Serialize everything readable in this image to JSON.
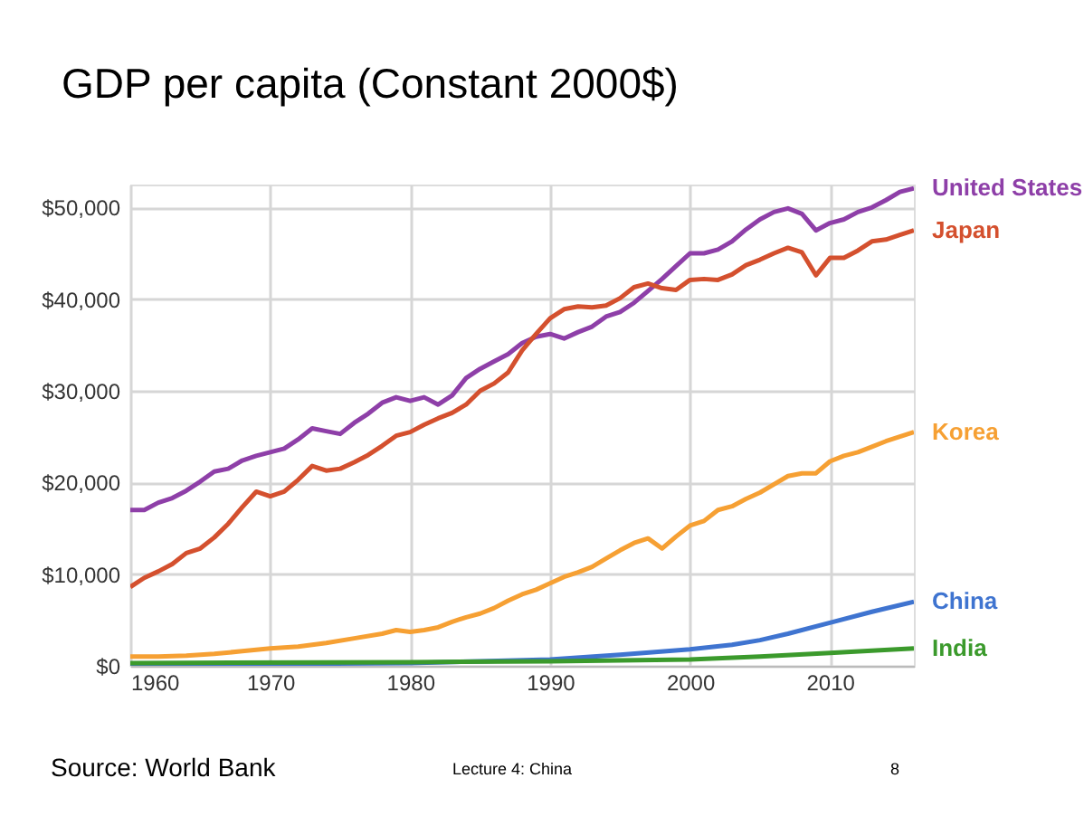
{
  "chart_data": {
    "type": "line",
    "title": "GDP per capita (Constant 2000$)",
    "xlim": [
      1960,
      2016
    ],
    "xticks": [
      1960,
      1970,
      1980,
      1990,
      2000,
      2010
    ],
    "ylim": [
      0,
      52500
    ],
    "yticks": [
      {
        "value": 0,
        "label": "$0"
      },
      {
        "value": 10000,
        "label": "$10,000"
      },
      {
        "value": 20000,
        "label": "$20,000"
      },
      {
        "value": 30000,
        "label": "$30,000"
      },
      {
        "value": 40000,
        "label": "$40,000"
      },
      {
        "value": 50000,
        "label": "$50,000"
      }
    ],
    "grid": true,
    "legend": false,
    "marker": "none",
    "line_style": "solid",
    "annotations": [
      "Source:  World Bank",
      "Lecture 4:  China",
      "8"
    ],
    "series": [
      {
        "name": "United States",
        "color": "#8e3fa8",
        "x": [
          1960,
          1961,
          1962,
          1963,
          1964,
          1965,
          1966,
          1967,
          1968,
          1969,
          1970,
          1971,
          1972,
          1973,
          1974,
          1975,
          1976,
          1977,
          1978,
          1979,
          1980,
          1981,
          1982,
          1983,
          1984,
          1985,
          1986,
          1987,
          1988,
          1989,
          1990,
          1991,
          1992,
          1993,
          1994,
          1995,
          1996,
          1997,
          1998,
          1999,
          2000,
          2001,
          2002,
          2003,
          2004,
          2005,
          2006,
          2007,
          2008,
          2009,
          2010,
          2011,
          2012,
          2013,
          2014,
          2015,
          2016
        ],
        "values": [
          17000,
          17000,
          17800,
          18300,
          19100,
          20100,
          21200,
          21500,
          22400,
          22900,
          23300,
          23700,
          24700,
          25900,
          25600,
          25300,
          26500,
          27500,
          28700,
          29300,
          28900,
          29300,
          28500,
          29500,
          31400,
          32400,
          33200,
          34000,
          35200,
          35900,
          36200,
          35700,
          36400,
          37000,
          38100,
          38600,
          39600,
          40900,
          42200,
          43600,
          45000,
          45000,
          45400,
          46300,
          47600,
          48700,
          49500,
          49900,
          49300,
          47500,
          48300,
          48700,
          49500,
          50000,
          50800,
          51700,
          52100
        ]
      },
      {
        "name": "Japan",
        "color": "#d4502e",
        "x": [
          1960,
          1961,
          1962,
          1963,
          1964,
          1965,
          1966,
          1967,
          1968,
          1969,
          1970,
          1971,
          1972,
          1973,
          1974,
          1975,
          1976,
          1977,
          1978,
          1979,
          1980,
          1981,
          1982,
          1983,
          1984,
          1985,
          1986,
          1987,
          1988,
          1989,
          1990,
          1991,
          1992,
          1993,
          1994,
          1995,
          1996,
          1997,
          1998,
          1999,
          2000,
          2001,
          2002,
          2003,
          2004,
          2005,
          2006,
          2007,
          2008,
          2009,
          2010,
          2011,
          2012,
          2013,
          2014,
          2015,
          2016
        ],
        "values": [
          8600,
          9600,
          10300,
          11100,
          12300,
          12800,
          14000,
          15500,
          17300,
          19000,
          18500,
          19000,
          20300,
          21800,
          21300,
          21500,
          22200,
          23000,
          24000,
          25100,
          25500,
          26300,
          27000,
          27600,
          28500,
          30000,
          30800,
          32000,
          34400,
          36200,
          37900,
          38900,
          39200,
          39100,
          39300,
          40100,
          41300,
          41700,
          41200,
          41000,
          42100,
          42200,
          42100,
          42700,
          43700,
          44300,
          45000,
          45600,
          45100,
          42600,
          44500,
          44500,
          45300,
          46300,
          46500,
          47000,
          47500
        ]
      },
      {
        "name": "Korea",
        "color": "#f6a033",
        "x": [
          1960,
          1962,
          1964,
          1966,
          1968,
          1970,
          1972,
          1974,
          1976,
          1978,
          1979,
          1980,
          1981,
          1982,
          1983,
          1984,
          1985,
          1986,
          1987,
          1988,
          1989,
          1990,
          1991,
          1992,
          1993,
          1994,
          1995,
          1996,
          1997,
          1998,
          1999,
          2000,
          2001,
          2002,
          2003,
          2004,
          2005,
          2006,
          2007,
          2008,
          2009,
          2010,
          2011,
          2012,
          2013,
          2014,
          2015,
          2016
        ],
        "values": [
          1000,
          1000,
          1100,
          1300,
          1600,
          1900,
          2100,
          2500,
          3000,
          3500,
          3900,
          3700,
          3900,
          4200,
          4800,
          5300,
          5700,
          6300,
          7100,
          7800,
          8300,
          9000,
          9700,
          10200,
          10800,
          11700,
          12600,
          13400,
          13900,
          12800,
          14100,
          15300,
          15800,
          17000,
          17400,
          18200,
          18900,
          19800,
          20700,
          21000,
          21000,
          22300,
          22900,
          23300,
          23900,
          24500,
          25000,
          25500
        ]
      },
      {
        "name": "China",
        "color": "#3f74d0",
        "x": [
          1960,
          1970,
          1980,
          1985,
          1990,
          1995,
          2000,
          2003,
          2005,
          2007,
          2010,
          2013,
          2016
        ],
        "values": [
          200,
          200,
          300,
          500,
          700,
          1200,
          1800,
          2300,
          2800,
          3500,
          4700,
          5900,
          7000
        ]
      },
      {
        "name": "India",
        "color": "#3b9a2c",
        "x": [
          1960,
          1980,
          1990,
          2000,
          2005,
          2010,
          2016
        ],
        "values": [
          300,
          400,
          500,
          700,
          1000,
          1400,
          1900
        ]
      }
    ]
  }
}
